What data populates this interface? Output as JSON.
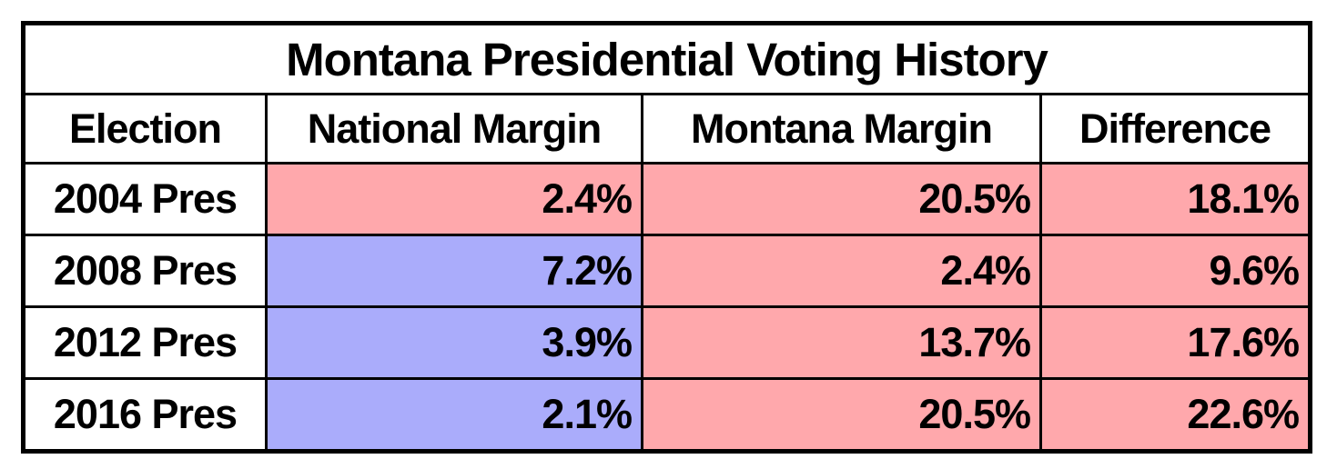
{
  "chart_data": {
    "type": "table",
    "title": "Montana Presidential Voting History",
    "columns": [
      "Election",
      "National Margin",
      "Montana Margin",
      "Difference"
    ],
    "rows": [
      [
        "2004 Pres",
        "2.4%",
        "20.5%",
        "18.1%"
      ],
      [
        "2008 Pres",
        "7.2%",
        "2.4%",
        "9.6%"
      ],
      [
        "2012 Pres",
        "3.9%",
        "13.7%",
        "17.6%"
      ],
      [
        "2016 Pres",
        "2.1%",
        "20.5%",
        "22.6%"
      ]
    ],
    "cell_fills": [
      [
        "none",
        "red",
        "red",
        "red"
      ],
      [
        "none",
        "blue",
        "red",
        "red"
      ],
      [
        "none",
        "blue",
        "red",
        "red"
      ],
      [
        "none",
        "blue",
        "red",
        "red"
      ]
    ],
    "fill_colors": {
      "red": "#FFA8AC",
      "blue": "#AAACFB",
      "none": "#FFFFFF"
    },
    "border_color": "#000000",
    "background_color": "#FFFFFF"
  }
}
